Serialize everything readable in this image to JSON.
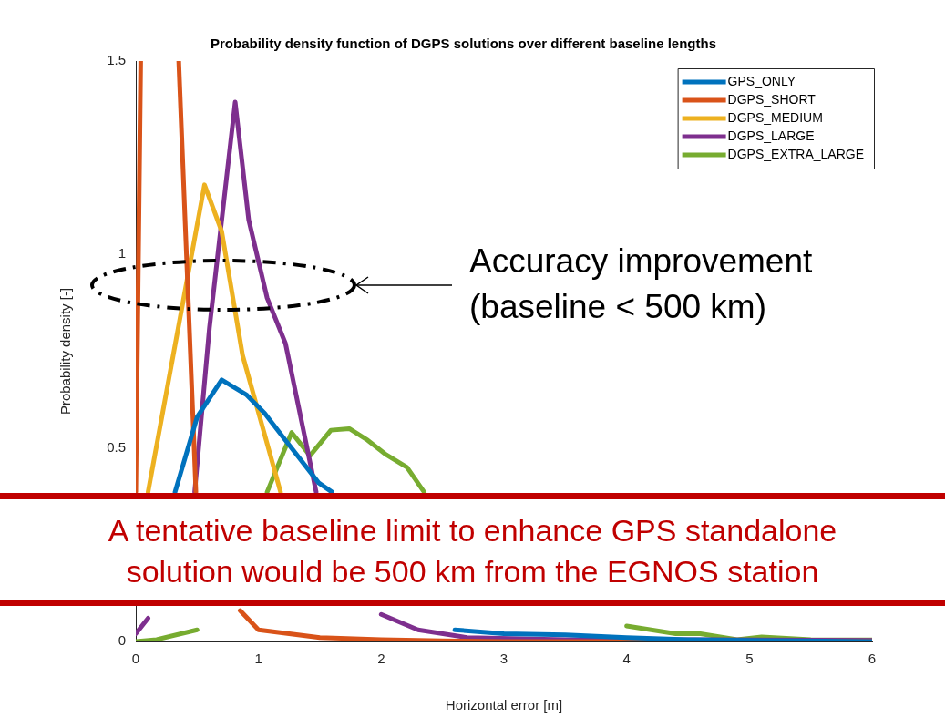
{
  "chart_data": {
    "type": "line",
    "title": "Probability density function of DGPS solutions over different baseline lengths",
    "xlabel": "Horizontal error [m]",
    "ylabel": "Probability density [-]",
    "xlim": [
      0,
      6
    ],
    "xticks": [
      0,
      1,
      2,
      3,
      4,
      5,
      6
    ],
    "ylim": [
      0,
      1.5
    ],
    "yticks": [
      0,
      0.5,
      1,
      1.5
    ],
    "grid": false,
    "legend": "top right",
    "marker": "none",
    "line_style": "solid",
    "series": [
      {
        "name": "GPS_ONLY",
        "color": "#0072bd",
        "x": [
          0.32,
          0.5,
          0.7,
          0.9,
          1.05,
          1.22,
          1.49,
          1.6,
          2.0,
          2.6,
          3.0,
          3.5,
          4.0,
          4.5,
          5.0,
          6.0
        ],
        "values": [
          0.386,
          0.58,
          0.676,
          0.638,
          0.59,
          0.52,
          0.41,
          0.386,
          null,
          0.03,
          0.02,
          0.017,
          0.01,
          0.005,
          0.003,
          0
        ]
      },
      {
        "name": "DGPS_SHORT",
        "color": "#d95319",
        "x": [
          0.0,
          0.04,
          0.2,
          0.35,
          0.49,
          0.7,
          0.85,
          1.0,
          1.5,
          2.0,
          2.5,
          3.0,
          6.0
        ],
        "values": [
          0.386,
          1.5,
          null,
          1.5,
          0.386,
          null,
          0.08,
          0.03,
          0.01,
          0.005,
          0.002,
          0,
          0
        ]
      },
      {
        "name": "DGPS_MEDIUM",
        "color": "#edb120",
        "x": [
          0.1,
          0.56,
          0.7,
          0.87,
          1.18
        ],
        "values": [
          0.386,
          1.18,
          1.06,
          0.74,
          0.386
        ]
      },
      {
        "name": "DGPS_LARGE",
        "color": "#7e2f8e",
        "x": [
          0.0,
          0.1,
          0.3,
          0.48,
          0.6,
          0.81,
          0.92,
          1.07,
          1.22,
          1.47,
          1.7,
          2.0,
          2.3,
          2.7,
          3.5,
          4.5,
          6.0
        ],
        "values": [
          0.02,
          0.06,
          null,
          0.386,
          0.81,
          1.394,
          1.09,
          0.888,
          0.77,
          0.386,
          null,
          0.07,
          0.03,
          0.01,
          0.005,
          0.005,
          0.003
        ]
      },
      {
        "name": "DGPS_EXTRA_LARGE",
        "color": "#77ac30",
        "x": [
          0.0,
          0.17,
          0.5,
          0.7,
          1.07,
          1.27,
          1.42,
          1.59,
          1.74,
          1.89,
          2.03,
          2.21,
          2.35,
          3.0,
          4.0,
          4.4,
          4.6,
          4.9,
          5.1,
          5.5,
          6.0
        ],
        "values": [
          0,
          0.005,
          0.03,
          null,
          0.386,
          0.54,
          0.48,
          0.546,
          0.55,
          0.52,
          0.485,
          0.45,
          0.386,
          null,
          0.04,
          0.02,
          0.02,
          0.005,
          0.012,
          0.005,
          0.004
        ]
      }
    ],
    "annotations": [
      "Accuracy improvement\n(baseline < 500 km)",
      "A tentative baseline limit to enhance GPS standalone\nsolution would be 500 km from the EGNOS station"
    ]
  }
}
